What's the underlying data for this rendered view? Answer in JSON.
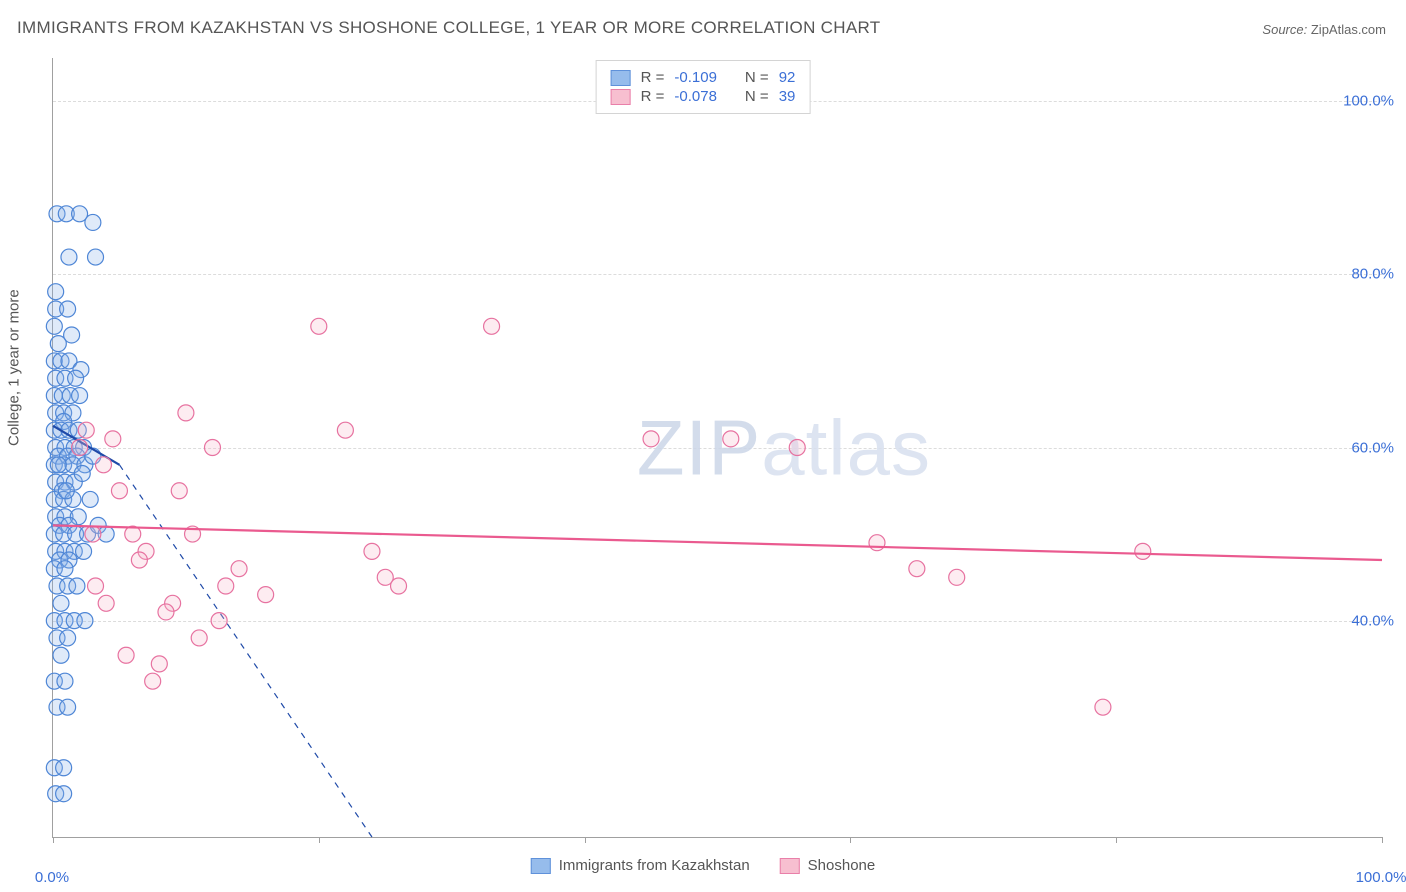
{
  "title": "IMMIGRANTS FROM KAZAKHSTAN VS SHOSHONE COLLEGE, 1 YEAR OR MORE CORRELATION CHART",
  "source_label": "Source:",
  "source_value": "ZipAtlas.com",
  "watermark": {
    "bold": "ZIP",
    "thin": "atlas"
  },
  "ylabel": "College, 1 year or more",
  "chart": {
    "type": "scatter",
    "background_color": "#ffffff",
    "grid_color": "#dcdcdc",
    "axis_color": "#a0a0a0",
    "tick_label_color": "#3b6fd6",
    "text_color": "#555555",
    "title_fontsize": 17,
    "label_fontsize": 15,
    "tick_fontsize": 15,
    "xlim": [
      0,
      100
    ],
    "ylim": [
      15,
      105
    ],
    "xticks": [
      0,
      20,
      40,
      60,
      80,
      100
    ],
    "xtick_labels_shown": {
      "0": "0.0%",
      "100": "100.0%"
    },
    "yticks": [
      40,
      60,
      80,
      100
    ],
    "ytick_labels": {
      "40": "40.0%",
      "60": "60.0%",
      "80": "80.0%",
      "100": "100.0%"
    },
    "marker_radius": 8,
    "marker_stroke_width": 1.2,
    "marker_fill_opacity": 0.28,
    "trend_line_width": 2.2,
    "trend_dash_width": 1.2,
    "series": [
      {
        "name": "Immigrants from Kazakhstan",
        "color_fill": "#8bb5ea",
        "color_stroke": "#4e86d6",
        "trend_color": "#1f4aa8",
        "R": "-0.109",
        "N": "92",
        "trend_solid": {
          "x1": 0,
          "y1": 62.5,
          "x2": 5,
          "y2": 58
        },
        "trend_dash": {
          "x1": 5,
          "y1": 58,
          "x2": 24,
          "y2": 15
        },
        "points": [
          [
            0.3,
            87
          ],
          [
            1.0,
            87
          ],
          [
            2.0,
            87
          ],
          [
            3.0,
            86
          ],
          [
            1.2,
            82
          ],
          [
            0.2,
            78
          ],
          [
            3.2,
            82
          ],
          [
            0.2,
            76
          ],
          [
            1.1,
            76
          ],
          [
            0.1,
            74
          ],
          [
            0.4,
            72
          ],
          [
            1.4,
            73
          ],
          [
            0.1,
            70
          ],
          [
            0.6,
            70
          ],
          [
            1.2,
            70
          ],
          [
            2.1,
            69
          ],
          [
            0.2,
            68
          ],
          [
            0.9,
            68
          ],
          [
            1.7,
            68
          ],
          [
            0.1,
            66
          ],
          [
            0.7,
            66
          ],
          [
            1.3,
            66
          ],
          [
            2.0,
            66
          ],
          [
            0.2,
            64
          ],
          [
            0.8,
            64
          ],
          [
            1.5,
            64
          ],
          [
            0.8,
            63
          ],
          [
            0.1,
            62
          ],
          [
            0.6,
            62
          ],
          [
            1.2,
            62
          ],
          [
            1.9,
            62
          ],
          [
            0.2,
            60
          ],
          [
            0.9,
            60
          ],
          [
            1.6,
            60
          ],
          [
            2.3,
            60
          ],
          [
            0.4,
            59
          ],
          [
            1.1,
            59
          ],
          [
            1.8,
            59
          ],
          [
            0.1,
            58
          ],
          [
            0.8,
            58
          ],
          [
            1.5,
            58
          ],
          [
            2.4,
            58
          ],
          [
            0.2,
            56
          ],
          [
            0.9,
            56
          ],
          [
            1.6,
            56
          ],
          [
            0.7,
            55
          ],
          [
            0.1,
            54
          ],
          [
            0.8,
            54
          ],
          [
            1.5,
            54
          ],
          [
            0.2,
            52
          ],
          [
            0.9,
            52
          ],
          [
            1.9,
            52
          ],
          [
            0.5,
            51
          ],
          [
            1.2,
            51
          ],
          [
            0.1,
            50
          ],
          [
            0.8,
            50
          ],
          [
            1.7,
            50
          ],
          [
            2.6,
            50
          ],
          [
            3.4,
            51
          ],
          [
            4.0,
            50
          ],
          [
            0.2,
            48
          ],
          [
            0.9,
            48
          ],
          [
            1.6,
            48
          ],
          [
            2.3,
            48
          ],
          [
            0.5,
            47
          ],
          [
            1.2,
            47
          ],
          [
            0.1,
            46
          ],
          [
            0.9,
            46
          ],
          [
            0.3,
            44
          ],
          [
            1.1,
            44
          ],
          [
            1.8,
            44
          ],
          [
            0.6,
            42
          ],
          [
            0.1,
            40
          ],
          [
            0.9,
            40
          ],
          [
            1.6,
            40
          ],
          [
            2.4,
            40
          ],
          [
            0.3,
            38
          ],
          [
            1.1,
            38
          ],
          [
            0.6,
            36
          ],
          [
            0.1,
            33
          ],
          [
            0.9,
            33
          ],
          [
            0.3,
            30
          ],
          [
            1.1,
            30
          ],
          [
            0.1,
            23
          ],
          [
            0.8,
            23
          ],
          [
            0.2,
            20
          ],
          [
            0.8,
            20
          ],
          [
            0.4,
            58
          ],
          [
            1.0,
            55
          ],
          [
            2.2,
            57
          ],
          [
            3.0,
            59
          ],
          [
            2.8,
            54
          ]
        ]
      },
      {
        "name": "Shoshone",
        "color_fill": "#f7b9cb",
        "color_stroke": "#e772a0",
        "trend_color": "#ea5a8f",
        "R": "-0.078",
        "N": "39",
        "trend_solid": {
          "x1": 0,
          "y1": 51,
          "x2": 100,
          "y2": 47
        },
        "trend_dash": null,
        "points": [
          [
            3.8,
            58
          ],
          [
            2.0,
            60
          ],
          [
            5.0,
            55
          ],
          [
            7.0,
            48
          ],
          [
            8.0,
            35
          ],
          [
            6.0,
            50
          ],
          [
            9.0,
            42
          ],
          [
            10.0,
            64
          ],
          [
            12.0,
            60
          ],
          [
            14.0,
            46
          ],
          [
            16.0,
            43
          ],
          [
            8.5,
            41
          ],
          [
            11.0,
            38
          ],
          [
            12.5,
            40
          ],
          [
            20.0,
            74
          ],
          [
            10.5,
            50
          ],
          [
            22.0,
            62
          ],
          [
            24.0,
            48
          ],
          [
            25.0,
            45
          ],
          [
            26.0,
            44
          ],
          [
            33.0,
            74
          ],
          [
            4.0,
            42
          ],
          [
            5.5,
            36
          ],
          [
            3.2,
            44
          ],
          [
            2.5,
            62
          ],
          [
            3.0,
            50
          ],
          [
            45.0,
            61
          ],
          [
            51.0,
            61
          ],
          [
            56.0,
            60
          ],
          [
            62.0,
            49
          ],
          [
            65.0,
            46
          ],
          [
            68.0,
            45
          ],
          [
            79.0,
            30
          ],
          [
            82.0,
            48
          ],
          [
            7.5,
            33
          ],
          [
            4.5,
            61
          ],
          [
            13.0,
            44
          ],
          [
            9.5,
            55
          ],
          [
            6.5,
            47
          ]
        ]
      }
    ]
  }
}
